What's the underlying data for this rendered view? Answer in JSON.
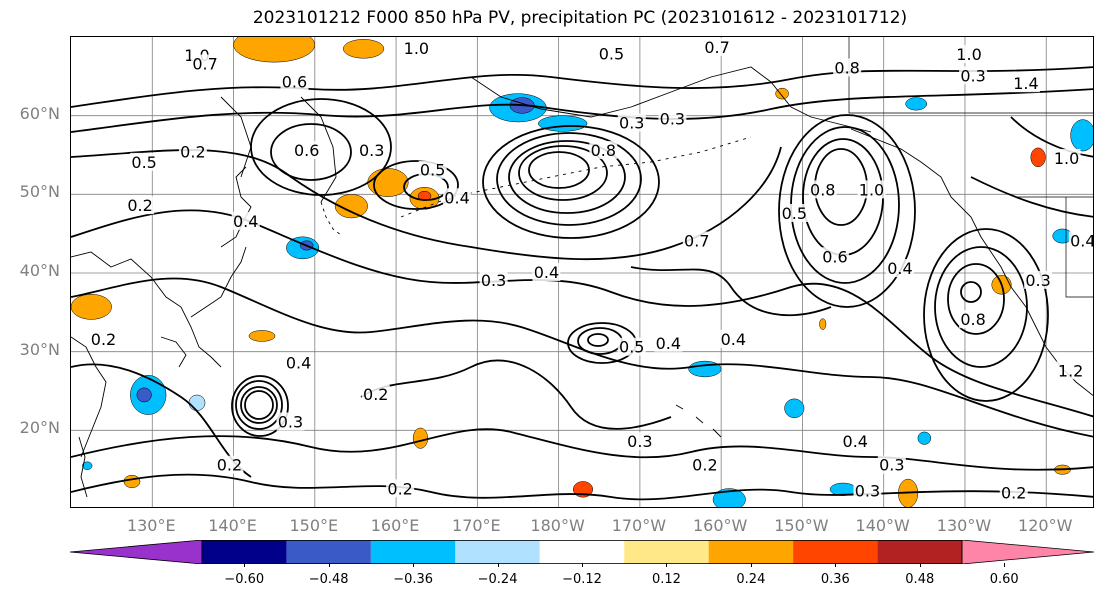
{
  "title": "2023101212 F000 850 hPa PV, precipitation PC (2023101612 - 2023101712)",
  "map": {
    "lon_range": [
      120,
      246
    ],
    "lat_range": [
      10,
      70
    ],
    "lat_ticks": [
      {
        "lat": 60,
        "label": "60°N"
      },
      {
        "lat": 50,
        "label": "50°N"
      },
      {
        "lat": 40,
        "label": "40°N"
      },
      {
        "lat": 30,
        "label": "30°N"
      },
      {
        "lat": 20,
        "label": "20°N"
      }
    ],
    "lon_ticks": [
      {
        "lon": 130,
        "label": "130°E"
      },
      {
        "lon": 140,
        "label": "140°E"
      },
      {
        "lon": 150,
        "label": "150°E"
      },
      {
        "lon": 160,
        "label": "160°E"
      },
      {
        "lon": 170,
        "label": "170°E"
      },
      {
        "lon": 180,
        "label": "180°W"
      },
      {
        "lon": 190,
        "label": "170°W"
      },
      {
        "lon": 200,
        "label": "160°W"
      },
      {
        "lon": 210,
        "label": "150°W"
      },
      {
        "lon": 220,
        "label": "140°W"
      },
      {
        "lon": 230,
        "label": "130°W"
      },
      {
        "lon": 240,
        "label": "120°W"
      }
    ],
    "contour_labels": [
      {
        "text": "1.0",
        "lon": 135.5,
        "lat": 67.6
      },
      {
        "text": "0.7",
        "lon": 136.5,
        "lat": 66.5
      },
      {
        "text": "0.6",
        "lon": 147.5,
        "lat": 64.2
      },
      {
        "text": "1.0",
        "lon": 162.5,
        "lat": 68.5
      },
      {
        "text": "0.5",
        "lon": 186.5,
        "lat": 67.8
      },
      {
        "text": "0.7",
        "lon": 199.5,
        "lat": 68.6
      },
      {
        "text": "0.3",
        "lon": 189,
        "lat": 59
      },
      {
        "text": "0.3",
        "lon": 194,
        "lat": 59.5
      },
      {
        "text": "0.8",
        "lon": 185.5,
        "lat": 55.5
      },
      {
        "text": "0.6",
        "lon": 149,
        "lat": 55.5
      },
      {
        "text": "0.2",
        "lon": 135,
        "lat": 55.3
      },
      {
        "text": "0.5",
        "lon": 129,
        "lat": 54
      },
      {
        "text": "0.2",
        "lon": 128.5,
        "lat": 48.5
      },
      {
        "text": "0.4",
        "lon": 141.5,
        "lat": 46.5
      },
      {
        "text": "0.3",
        "lon": 157,
        "lat": 55.5
      },
      {
        "text": "0.5",
        "lon": 164.5,
        "lat": 53
      },
      {
        "text": "0.4",
        "lon": 167.5,
        "lat": 49.5
      },
      {
        "text": "1.0",
        "lon": 230.5,
        "lat": 67.7
      },
      {
        "text": "0.3",
        "lon": 231,
        "lat": 65
      },
      {
        "text": "1.4",
        "lon": 237.5,
        "lat": 64
      },
      {
        "text": "0.8",
        "lon": 215.5,
        "lat": 66
      },
      {
        "text": "1.0",
        "lon": 242.5,
        "lat": 54.5
      },
      {
        "text": "1.0",
        "lon": 218.5,
        "lat": 50.5
      },
      {
        "text": "0.8",
        "lon": 212.5,
        "lat": 50.5
      },
      {
        "text": "0.5",
        "lon": 209,
        "lat": 47.5
      },
      {
        "text": "0.6",
        "lon": 214,
        "lat": 42
      },
      {
        "text": "0.4",
        "lon": 222,
        "lat": 40.5
      },
      {
        "text": "0.7",
        "lon": 197,
        "lat": 44
      },
      {
        "text": "0.3",
        "lon": 172,
        "lat": 39
      },
      {
        "text": "0.4",
        "lon": 178.5,
        "lat": 40
      },
      {
        "text": "0.4",
        "lon": 244.5,
        "lat": 44
      },
      {
        "text": "0.3",
        "lon": 239,
        "lat": 39
      },
      {
        "text": "0.8",
        "lon": 231,
        "lat": 34
      },
      {
        "text": "1.2",
        "lon": 243,
        "lat": 27.5
      },
      {
        "text": "0.2",
        "lon": 124,
        "lat": 31.5
      },
      {
        "text": "0.5",
        "lon": 189,
        "lat": 30.5
      },
      {
        "text": "0.4",
        "lon": 193.5,
        "lat": 31
      },
      {
        "text": "0.4",
        "lon": 201.5,
        "lat": 31.5
      },
      {
        "text": "0.4",
        "lon": 148,
        "lat": 28.5
      },
      {
        "text": "0.2",
        "lon": 157.5,
        "lat": 24.5
      },
      {
        "text": "0.3",
        "lon": 147,
        "lat": 21
      },
      {
        "text": "0.3",
        "lon": 190,
        "lat": 18.5
      },
      {
        "text": "0.4",
        "lon": 216.5,
        "lat": 18.5
      },
      {
        "text": "0.2",
        "lon": 198,
        "lat": 15.5
      },
      {
        "text": "0.3",
        "lon": 221,
        "lat": 15.5
      },
      {
        "text": "0.3",
        "lon": 218,
        "lat": 12.2
      },
      {
        "text": "0.2",
        "lon": 139.5,
        "lat": 15.5
      },
      {
        "text": "0.2",
        "lon": 160.5,
        "lat": 12.5
      },
      {
        "text": "0.2",
        "lon": 236,
        "lat": 12
      }
    ],
    "precip_blobs": [
      {
        "lon": 145,
        "lat": 69,
        "rlon": 5,
        "rlat": 2.2,
        "v": 0.3
      },
      {
        "lon": 156,
        "lat": 68.5,
        "rlon": 2.5,
        "rlat": 1.2,
        "v": 0.24
      },
      {
        "lon": 175,
        "lat": 61,
        "rlon": 3.5,
        "rlat": 1.8,
        "v": -0.3
      },
      {
        "lon": 175.5,
        "lat": 61.3,
        "rlon": 1.5,
        "rlat": 1,
        "v": -0.4
      },
      {
        "lon": 180.5,
        "lat": 59,
        "rlon": 3,
        "rlat": 1,
        "v": -0.25
      },
      {
        "lon": 159,
        "lat": 51.5,
        "rlon": 2.5,
        "rlat": 1.8,
        "v": 0.3
      },
      {
        "lon": 154.5,
        "lat": 48.5,
        "rlon": 2,
        "rlat": 1.5,
        "v": 0.3
      },
      {
        "lon": 163.5,
        "lat": 49.5,
        "rlon": 1.8,
        "rlat": 1.4,
        "v": 0.3
      },
      {
        "lon": 163.5,
        "lat": 49.8,
        "rlon": 0.8,
        "rlat": 0.6,
        "v": 0.4
      },
      {
        "lon": 148.5,
        "lat": 43.2,
        "rlon": 2,
        "rlat": 1.4,
        "v": -0.3
      },
      {
        "lon": 149,
        "lat": 43.5,
        "rlon": 0.8,
        "rlat": 0.6,
        "v": -0.4
      },
      {
        "lon": 122.5,
        "lat": 35.7,
        "rlon": 2.5,
        "rlat": 1.6,
        "v": 0.3
      },
      {
        "lon": 143.5,
        "lat": 32,
        "rlon": 1.6,
        "rlat": 0.7,
        "v": 0.28
      },
      {
        "lon": 129.5,
        "lat": 24.5,
        "rlon": 2.2,
        "rlat": 2.5,
        "v": -0.3
      },
      {
        "lon": 129,
        "lat": 24.5,
        "rlon": 0.9,
        "rlat": 0.9,
        "v": -0.4
      },
      {
        "lon": 135.5,
        "lat": 23.5,
        "rlon": 1,
        "rlat": 1,
        "v": -0.2
      },
      {
        "lon": 163,
        "lat": 19,
        "rlon": 0.9,
        "rlat": 1.3,
        "v": 0.32
      },
      {
        "lon": 183,
        "lat": 12.5,
        "rlon": 1.2,
        "rlat": 1,
        "v": 0.36
      },
      {
        "lon": 198,
        "lat": 27.8,
        "rlon": 2,
        "rlat": 1,
        "v": -0.3
      },
      {
        "lon": 209,
        "lat": 22.8,
        "rlon": 1.2,
        "rlat": 1.2,
        "v": -0.3
      },
      {
        "lon": 201,
        "lat": 11.2,
        "rlon": 2,
        "rlat": 1.4,
        "v": -0.35
      },
      {
        "lon": 215,
        "lat": 12.5,
        "rlon": 1.6,
        "rlat": 0.8,
        "v": -0.3
      },
      {
        "lon": 225,
        "lat": 19,
        "rlon": 0.8,
        "rlat": 0.8,
        "v": -0.28
      },
      {
        "lon": 207.5,
        "lat": 62.8,
        "rlon": 0.8,
        "rlat": 0.7,
        "v": 0.32
      },
      {
        "lon": 224,
        "lat": 61.5,
        "rlon": 1.3,
        "rlat": 0.8,
        "v": -0.3
      },
      {
        "lon": 239,
        "lat": 54.7,
        "rlon": 0.9,
        "rlat": 1.2,
        "v": 0.38
      },
      {
        "lon": 244.5,
        "lat": 57.5,
        "rlon": 1.5,
        "rlat": 2,
        "v": -0.3
      },
      {
        "lon": 242,
        "lat": 44.7,
        "rlon": 1.2,
        "rlat": 0.9,
        "v": -0.3
      },
      {
        "lon": 234.5,
        "lat": 38.5,
        "rlon": 1.2,
        "rlat": 1.2,
        "v": 0.3
      },
      {
        "lon": 223,
        "lat": 12,
        "rlon": 1.2,
        "rlat": 1.8,
        "v": 0.33
      },
      {
        "lon": 242,
        "lat": 15,
        "rlon": 1,
        "rlat": 0.6,
        "v": 0.28
      },
      {
        "lon": 127.5,
        "lat": 13.5,
        "rlon": 1,
        "rlat": 0.8,
        "v": 0.28
      },
      {
        "lon": 212.5,
        "lat": 33.5,
        "rlon": 0.4,
        "rlat": 0.7,
        "v": 0.26
      },
      {
        "lon": 122,
        "lat": 15.5,
        "rlon": 0.6,
        "rlat": 0.5,
        "v": -0.25
      }
    ],
    "colors": {
      "coast": "#000000",
      "grid": "#808080",
      "contour": "#000000"
    }
  },
  "colorbar": {
    "levels": [
      -0.6,
      -0.48,
      -0.36,
      -0.24,
      -0.12,
      0.12,
      0.24,
      0.36,
      0.48,
      0.6
    ],
    "tick_labels": [
      "−0.60",
      "−0.48",
      "−0.36",
      "−0.24",
      "−0.12",
      "0.12",
      "0.24",
      "0.36",
      "0.48",
      "0.60"
    ],
    "colors": [
      "#9932CC",
      "#00008B",
      "#3A5BC7",
      "#00BFFF",
      "#B0E2FF",
      "#FFFFFF",
      "#FFE888",
      "#FFA500",
      "#FF4500",
      "#B22222",
      "#FF85A8"
    ]
  }
}
